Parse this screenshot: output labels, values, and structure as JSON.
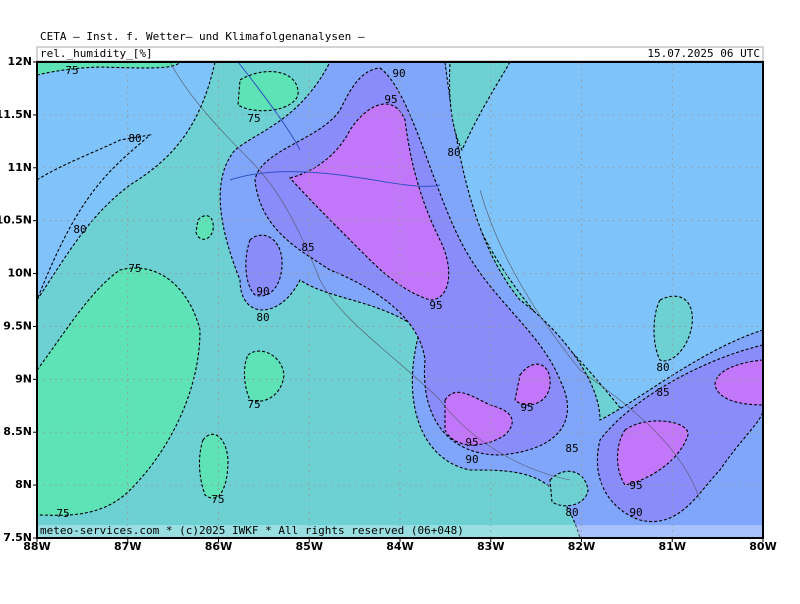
{
  "header": {
    "title": "CETA — Inst. f. Wetter— und Klimafolgenanalysen —",
    "variable": "rel._humidity_[%]",
    "valid_time": "15.07.2025 06 UTC"
  },
  "map": {
    "lat_labels": [
      "12N",
      "11.5N",
      "11N",
      "10.5N",
      "10N",
      "9.5N",
      "9N",
      "8.5N",
      "8N",
      "7.5N"
    ],
    "lon_labels": [
      "88W",
      "87W",
      "86W",
      "85W",
      "84W",
      "83W",
      "82W",
      "81W",
      "80W"
    ],
    "contour_labels": [
      75,
      80,
      80,
      75,
      75,
      90,
      95,
      80,
      85,
      90,
      80,
      95,
      75,
      75,
      75,
      95,
      90,
      95,
      85,
      80,
      85,
      95,
      90,
      80
    ],
    "credit": "meteo-services.com * (c)2025 IWKF * All rights reserved (06+048)"
  }
}
